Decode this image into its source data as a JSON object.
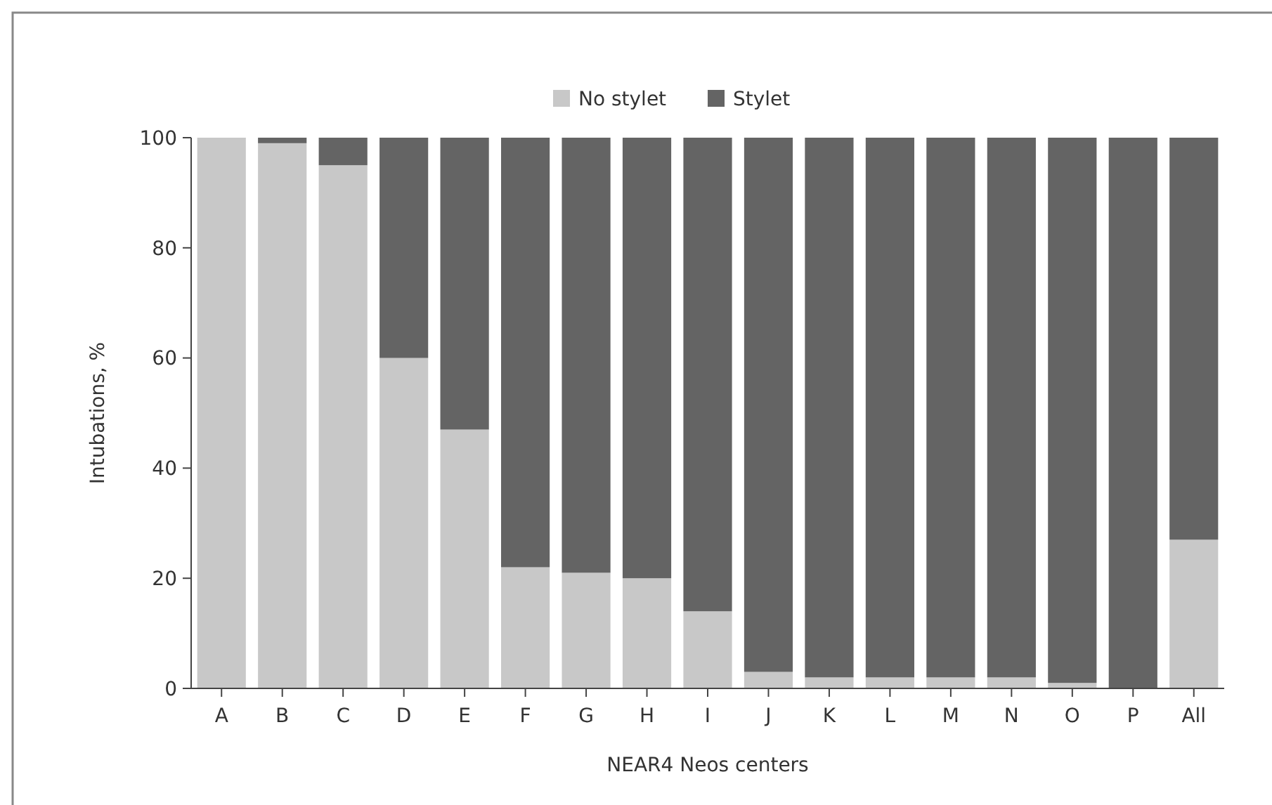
{
  "chart_data": {
    "type": "bar",
    "stacked": true,
    "xlabel": "NEAR4 Neos centers",
    "ylabel": "Intubations, %",
    "categories": [
      "A",
      "B",
      "C",
      "D",
      "E",
      "F",
      "G",
      "H",
      "I",
      "J",
      "K",
      "L",
      "M",
      "N",
      "O",
      "P",
      "All"
    ],
    "series": [
      {
        "name": "No stylet",
        "color": "#c8c8c8",
        "values": [
          100,
          99,
          95,
          60,
          47,
          22,
          21,
          20,
          14,
          3,
          2,
          2,
          2,
          2,
          1,
          0,
          27
        ]
      },
      {
        "name": "Stylet",
        "color": "#646464",
        "values": [
          0,
          1,
          5,
          40,
          53,
          78,
          79,
          80,
          86,
          97,
          98,
          98,
          98,
          98,
          99,
          100,
          73
        ]
      }
    ],
    "ylim": [
      0,
      100
    ],
    "yticks": [
      0,
      20,
      40,
      60,
      80,
      100
    ],
    "grid": false,
    "legend": "top"
  }
}
